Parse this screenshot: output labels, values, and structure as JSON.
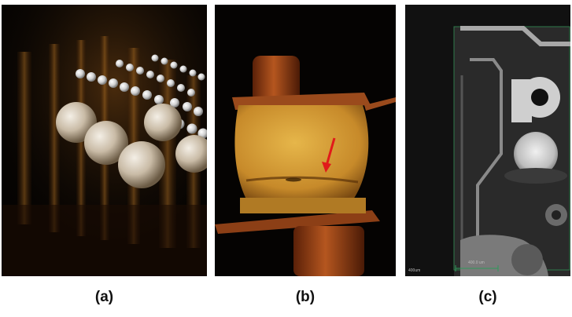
{
  "panels": [
    {
      "id": "a",
      "caption": "(a)"
    },
    {
      "id": "b",
      "caption": "(b)"
    },
    {
      "id": "c",
      "caption": "(c)",
      "scale_bar_label": "400.0 um",
      "corner_label": "400um"
    }
  ],
  "colors": {
    "background": "#050302",
    "solder_ball": "#d9cfc0",
    "amber": "#c78a2a",
    "copper": "#a0461a",
    "arrow": "#e11a1a",
    "xray_gray": "#9a9a9a"
  },
  "marker_icons": [
    "red-arrow-icon"
  ]
}
